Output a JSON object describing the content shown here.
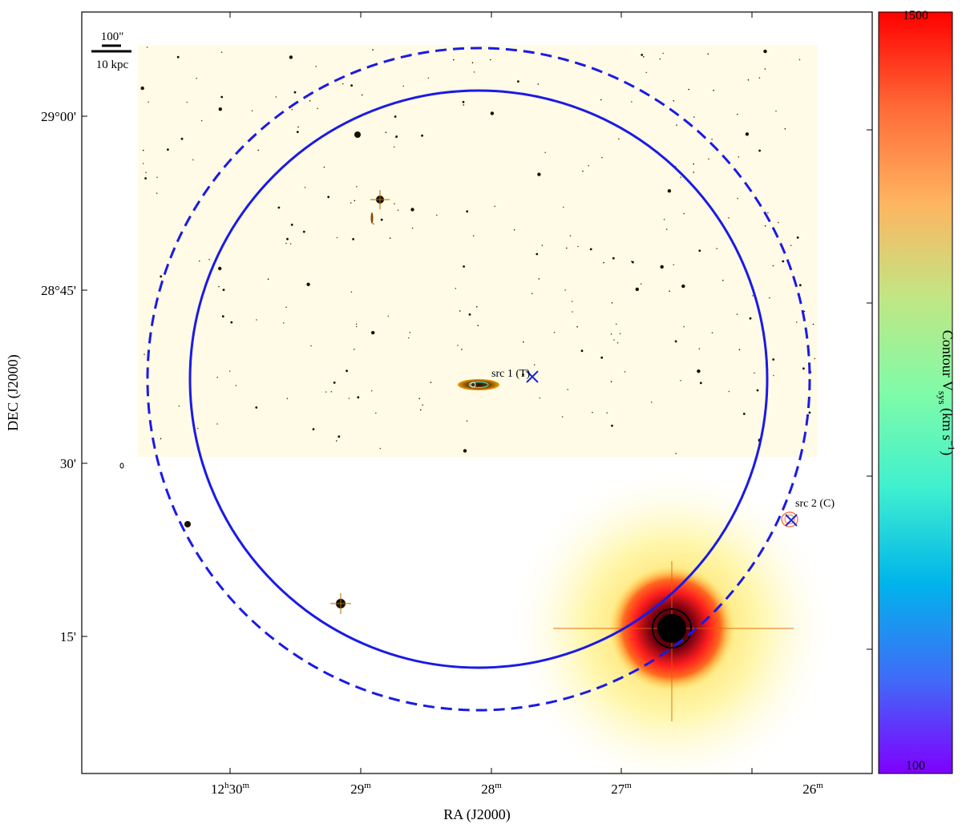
{
  "axes": {
    "xlabel": "RA (J2000)",
    "ylabel": "DEC (J2000)",
    "x_ticks": [
      {
        "h": "12",
        "hu": "h",
        "m": "30",
        "mu": "m"
      },
      {
        "h": "",
        "hu": "",
        "m": "29",
        "mu": "m"
      },
      {
        "h": "",
        "hu": "",
        "m": "28",
        "mu": "m"
      },
      {
        "h": "",
        "hu": "",
        "m": "27",
        "mu": "m"
      },
      {
        "h": "",
        "hu": "",
        "m": "26",
        "mu": "m"
      }
    ],
    "y_ticks": [
      "29°00'",
      "28°45'",
      "30'",
      "15'"
    ]
  },
  "scalebar": {
    "top_label": "100\"",
    "bottom_label": "10 kpc"
  },
  "sources": [
    {
      "label": "src 1 (T)"
    },
    {
      "label": "src 2 (C)"
    }
  ],
  "colorbar": {
    "label_main": "Contour V",
    "label_sub": "sys",
    "label_unit": " (km s",
    "label_sup": "−1",
    "label_end": ")",
    "max_label": "1500",
    "min_label": "100",
    "stops": [
      "#7f00ff",
      "#3f6cf7",
      "#00b4eb",
      "#3ff0cf",
      "#80fba8",
      "#c1e684",
      "#ffb460",
      "#ff6a37",
      "#ff0000"
    ]
  },
  "colors": {
    "background": "#fffbe6",
    "star_core": "#1a0e00",
    "star_halo": "#e8a000",
    "circle": "#1a1ae6",
    "bright_star_halo": "#ff1e1e",
    "source_marker": "#1a2ad6",
    "contour": "#ff6a37"
  }
}
